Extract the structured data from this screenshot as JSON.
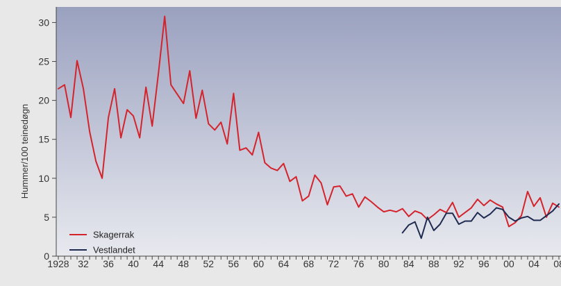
{
  "chart_data": {
    "type": "line",
    "ylabel": "Hummer/100 teinedøgn",
    "xlabel": "",
    "xlim": [
      1928,
      2008
    ],
    "ylim": [
      0,
      32
    ],
    "yticks": [
      0,
      5,
      10,
      15,
      20,
      25,
      30
    ],
    "xticks": [
      1928,
      1932,
      1936,
      1940,
      1944,
      1948,
      1952,
      1956,
      1960,
      1964,
      1968,
      1972,
      1976,
      1980,
      1984,
      1988,
      1992,
      1996,
      2000,
      2004,
      2008
    ],
    "xtick_labels": [
      "1928",
      "32",
      "36",
      "40",
      "44",
      "48",
      "52",
      "56",
      "60",
      "64",
      "68",
      "72",
      "76",
      "80",
      "84",
      "88",
      "92",
      "96",
      "00",
      "04",
      "08"
    ],
    "grid": false,
    "legend_position": "bottom-left",
    "background_gradient": [
      "#9aa1bf",
      "#e8e9ef"
    ],
    "series": [
      {
        "name": "Skagerrak",
        "color": "#d4232b",
        "x": [
          1928,
          1929,
          1930,
          1931,
          1932,
          1933,
          1934,
          1935,
          1936,
          1937,
          1938,
          1939,
          1940,
          1941,
          1942,
          1943,
          1944,
          1945,
          1946,
          1948,
          1949,
          1950,
          1951,
          1952,
          1953,
          1954,
          1955,
          1956,
          1957,
          1958,
          1959,
          1960,
          1961,
          1962,
          1963,
          1964,
          1965,
          1966,
          1967,
          1968,
          1969,
          1970,
          1971,
          1972,
          1973,
          1974,
          1975,
          1976,
          1977,
          1978,
          1979,
          1980,
          1981,
          1982,
          1983,
          1984,
          1985,
          1986,
          1987,
          1988,
          1989,
          1990,
          1991,
          1992,
          1993,
          1994,
          1995,
          1996,
          1997,
          1998,
          1999,
          2000,
          2001,
          2002,
          2003,
          2004,
          2005,
          2006,
          2007,
          2008
        ],
        "values": [
          21.5,
          22,
          17.8,
          25.1,
          21.5,
          16,
          12.2,
          10,
          17.8,
          21.5,
          15.2,
          18.8,
          18,
          15.2,
          21.7,
          16.7,
          23.5,
          30.8,
          22,
          19.6,
          23.8,
          17.7,
          21.3,
          17,
          16.2,
          17.2,
          14.4,
          20.9,
          13.6,
          13.9,
          13,
          15.9,
          12,
          11.3,
          11,
          11.9,
          9.6,
          10.2,
          7.1,
          7.7,
          10.4,
          9.4,
          6.6,
          8.9,
          9,
          7.7,
          8,
          6.3,
          7.6,
          7,
          6.3,
          5.7,
          5.9,
          5.7,
          6.1,
          5.1,
          5.8,
          5.5,
          4.7,
          5.3,
          6,
          5.6,
          6.9,
          5,
          5.6,
          6.2,
          7.3,
          6.5,
          7.2,
          6.7,
          6.3,
          3.8,
          4.3,
          5.2,
          8.3,
          6.4,
          7.5,
          5,
          6.8,
          6.3
        ]
      },
      {
        "name": "Vestlandet",
        "color": "#1e2a50",
        "x": [
          1983,
          1984,
          1985,
          1986,
          1987,
          1988,
          1989,
          1990,
          1991,
          1992,
          1993,
          1994,
          1995,
          1996,
          1997,
          1998,
          1999,
          2000,
          2001,
          2002,
          2003,
          2004,
          2005,
          2006,
          2007,
          2008
        ],
        "values": [
          3,
          4,
          4.4,
          2.3,
          5,
          3.3,
          4.1,
          5.5,
          5.5,
          4.1,
          4.5,
          4.5,
          5.6,
          4.9,
          5.4,
          6.2,
          6,
          5,
          4.5,
          4.9,
          5.1,
          4.6,
          4.6,
          5.2,
          5.8,
          6.7
        ]
      }
    ]
  }
}
